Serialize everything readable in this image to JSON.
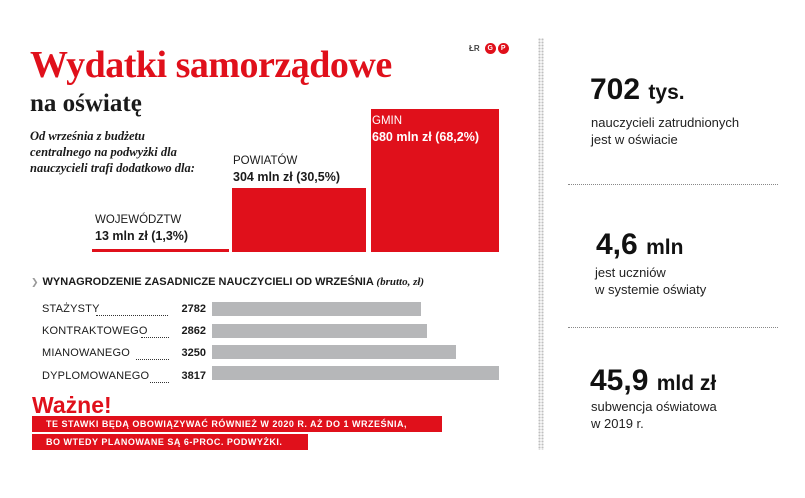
{
  "title": "Wydatki samorządowe",
  "subtitle": "na oświatę",
  "logo": {
    "text": "ŁR",
    "circle1": "G",
    "circle2": "P"
  },
  "intro": "Od września z budżetu centralnego na podwyżki dla nauczycieli trafi dodatkowo dla:",
  "accent_color": "#e0101b",
  "chart_data": [
    {
      "type": "bar",
      "title": "Wydatki samorządowe na oświatę",
      "categories": [
        "WOJEWÓDZTW",
        "POWIATÓW",
        "GMIN"
      ],
      "values": [
        13,
        304,
        680
      ],
      "value_labels": [
        "13 mln zł (1,3%)",
        "304 mln zł (30,5%)",
        "680 mln zł (68,2%)"
      ],
      "unit": "mln zł",
      "ylim": [
        0,
        680
      ]
    },
    {
      "type": "bar",
      "orientation": "horizontal",
      "title": "Wynagrodzenie zasadnicze nauczycieli od września",
      "title_suffix": "(brutto, zł)",
      "categories": [
        "STAŻYSTY",
        "KONTRAKTOWEGO",
        "MIANOWANEGO",
        "DYPLOMOWANEGO"
      ],
      "values": [
        2782,
        2862,
        3250,
        3817
      ],
      "xlim": [
        0,
        3817
      ]
    }
  ],
  "note": {
    "title": "Ważne!",
    "lines": [
      "Te stawki będą obowiązywać również w 2020 r. aż do 1 września,",
      "bo wtedy planowane są 6-proc. podwyżki."
    ]
  },
  "stats": [
    {
      "value": "702",
      "unit": "tys.",
      "desc_lines": [
        "nauczycieli zatrudnionych",
        "jest w oświacie"
      ]
    },
    {
      "value": "4,6",
      "unit": "mln",
      "desc_lines": [
        "jest uczniów",
        "w systemie oświaty"
      ]
    },
    {
      "value": "45,9",
      "unit": "mld zł",
      "desc_lines": [
        "subwencja oświatowa",
        "w 2019 r."
      ]
    }
  ]
}
